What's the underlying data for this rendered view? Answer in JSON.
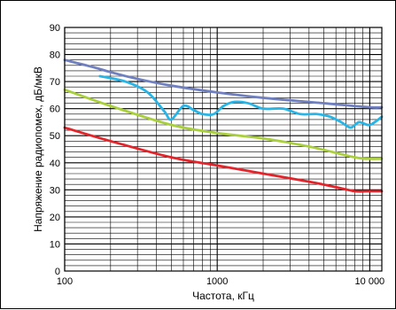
{
  "chart_data": {
    "type": "line",
    "title": "",
    "xlabel": "Частота, кГц",
    "ylabel": "Напряжение радиопомех, дБ/мкВ",
    "x_scale": "log",
    "xlim": [
      100,
      12000
    ],
    "ylim": [
      0,
      90
    ],
    "x_ticks": [
      {
        "value": 100,
        "label": "100"
      },
      {
        "value": 1000,
        "label": "1000"
      },
      {
        "value": 10000,
        "label": "10 000"
      }
    ],
    "y_ticks": [
      0,
      10,
      20,
      30,
      40,
      50,
      60,
      70,
      80,
      90
    ],
    "y_tick_labels": [
      "0",
      "10",
      "20",
      "30",
      "40",
      "50",
      "60",
      "70",
      "80",
      "90"
    ],
    "y_minor_step": 2,
    "grid": true,
    "legend": "none",
    "series": [
      {
        "color": "#6f7fbf",
        "x": [
          100,
          150,
          200,
          300,
          500,
          1000,
          2000,
          5000,
          10000,
          12000
        ],
        "y": [
          78,
          75.5,
          73.5,
          71,
          68.5,
          66,
          64,
          62,
          60.5,
          60.5
        ]
      },
      {
        "color": "#29b4e6",
        "x": [
          170,
          250,
          350,
          450,
          500,
          600,
          700,
          800,
          950,
          1100,
          1300,
          1600,
          2000,
          2700,
          3500,
          4500,
          5500,
          6500,
          7500,
          8500,
          10000,
          12000
        ],
        "y": [
          72,
          70,
          66,
          59,
          56,
          61,
          59.5,
          58,
          58,
          61,
          62.5,
          62,
          60,
          60,
          58,
          58,
          57,
          55,
          53,
          55,
          54,
          57
        ]
      },
      {
        "color": "#a9cf3d",
        "x": [
          100,
          200,
          500,
          1000,
          2000,
          4000,
          8000,
          10000,
          12000
        ],
        "y": [
          67,
          61,
          54,
          51,
          49,
          46,
          42,
          41.5,
          41.5
        ]
      },
      {
        "color": "#e3242b",
        "x": [
          100,
          200,
          500,
          1000,
          2000,
          4000,
          6000,
          8000,
          10000,
          12000
        ],
        "y": [
          53,
          48,
          42,
          39,
          36,
          33,
          31,
          29.5,
          29.5,
          29.5
        ]
      }
    ]
  }
}
